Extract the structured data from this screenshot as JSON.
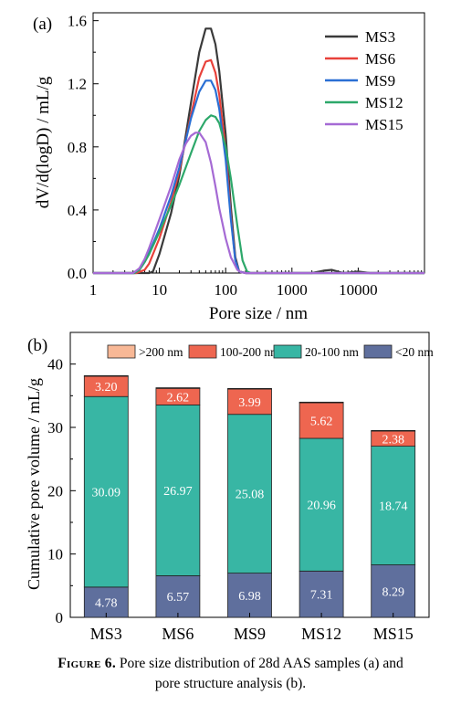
{
  "chart_data": [
    {
      "type": "line",
      "panel_label": "(a)",
      "xlabel": "Pore size / nm",
      "ylabel": "dV/d(logD) / mL/g",
      "x_scale": "log",
      "xlim": [
        1,
        100000
      ],
      "ylim": [
        0,
        1.65
      ],
      "x_ticks": [
        1,
        10,
        100,
        1000,
        10000
      ],
      "x_tick_labels": [
        "1",
        "10",
        "100",
        "1000",
        "10000"
      ],
      "y_ticks": [
        0,
        0.4,
        0.8,
        1.2,
        1.6
      ],
      "y_tick_labels": [
        "0.0",
        "0.4",
        "0.8",
        "1.2",
        "1.6"
      ],
      "legend_position": "top-right",
      "series": [
        {
          "name": "MS3",
          "color": "#3a3a3a",
          "x": [
            1,
            5,
            7,
            8,
            10,
            15,
            20,
            30,
            40,
            50,
            60,
            70,
            80,
            100,
            120,
            140,
            160,
            200,
            2000,
            3000,
            4000,
            6000,
            8000,
            10000,
            15000,
            100000
          ],
          "y": [
            0,
            0,
            0,
            0.01,
            0.12,
            0.38,
            0.62,
            1.08,
            1.4,
            1.55,
            1.55,
            1.45,
            1.28,
            0.88,
            0.42,
            0.1,
            0.01,
            0,
            0,
            0.015,
            0.02,
            0,
            0.005,
            0.01,
            0,
            0
          ]
        },
        {
          "name": "MS6",
          "color": "#e8413a",
          "x": [
            1,
            4.5,
            6,
            7,
            10,
            15,
            20,
            30,
            40,
            50,
            60,
            70,
            80,
            100,
            120,
            140,
            160,
            200,
            100000
          ],
          "y": [
            0,
            0,
            0.02,
            0.06,
            0.22,
            0.45,
            0.65,
            1.0,
            1.24,
            1.34,
            1.35,
            1.27,
            1.13,
            0.78,
            0.36,
            0.08,
            0.01,
            0,
            0
          ]
        },
        {
          "name": "MS9",
          "color": "#2a6fd4",
          "x": [
            1,
            4.2,
            5,
            6,
            7,
            10,
            15,
            20,
            30,
            40,
            50,
            60,
            70,
            80,
            100,
            120,
            140,
            160,
            200,
            100000
          ],
          "y": [
            0,
            0,
            0.02,
            0.07,
            0.13,
            0.28,
            0.49,
            0.67,
            0.98,
            1.15,
            1.22,
            1.22,
            1.16,
            1.04,
            0.72,
            0.34,
            0.08,
            0.01,
            0,
            0
          ]
        },
        {
          "name": "MS12",
          "color": "#2da86a",
          "x": [
            1,
            4.2,
            5,
            6,
            7,
            10,
            15,
            20,
            30,
            40,
            50,
            60,
            70,
            80,
            100,
            120,
            150,
            180,
            210,
            240,
            100000
          ],
          "y": [
            0,
            0,
            0.02,
            0.07,
            0.12,
            0.26,
            0.43,
            0.56,
            0.76,
            0.9,
            0.97,
            1.0,
            0.99,
            0.95,
            0.8,
            0.6,
            0.3,
            0.08,
            0.01,
            0,
            0
          ]
        },
        {
          "name": "MS15",
          "color": "#a56ad4",
          "x": [
            1,
            4.0,
            5,
            6,
            7,
            10,
            15,
            20,
            25,
            30,
            35,
            40,
            50,
            60,
            70,
            80,
            100,
            120,
            150,
            170,
            200,
            100000
          ],
          "y": [
            0,
            0,
            0.03,
            0.09,
            0.16,
            0.34,
            0.55,
            0.72,
            0.82,
            0.87,
            0.89,
            0.89,
            0.83,
            0.7,
            0.55,
            0.41,
            0.22,
            0.1,
            0.02,
            0.005,
            0,
            0
          ]
        }
      ]
    },
    {
      "type": "bar",
      "stacked": true,
      "panel_label": "(b)",
      "xlabel": "",
      "ylabel": "Cumulative pore volume / mL/g",
      "ylim": [
        0,
        45
      ],
      "y_ticks": [
        0,
        10,
        20,
        30,
        40
      ],
      "y_tick_labels": [
        "0",
        "10",
        "20",
        "30",
        "40"
      ],
      "legend_position": "top",
      "categories": [
        "MS3",
        "MS6",
        "MS9",
        "MS12",
        "MS15"
      ],
      "series": [
        {
          "name": "<20 nm",
          "color": "#5f6f9d",
          "values": [
            4.78,
            6.57,
            6.98,
            7.31,
            8.29
          ],
          "labels": [
            "4.78",
            "6.57",
            "6.98",
            "7.31",
            "8.29"
          ]
        },
        {
          "name": "20-100 nm",
          "color": "#38b6a4",
          "values": [
            30.09,
            26.97,
            25.08,
            20.96,
            18.74
          ],
          "labels": [
            "30.09",
            "26.97",
            "25.08",
            "20.96",
            "18.74"
          ]
        },
        {
          "name": "100-200 nm",
          "color": "#ee6650",
          "values": [
            3.2,
            2.62,
            3.99,
            5.62,
            2.38
          ],
          "labels": [
            "3.20",
            "2.62",
            "3.99",
            "5.62",
            "2.38"
          ]
        },
        {
          "name": ">200 nm",
          "color": "#f8b896",
          "values": [
            0.1,
            0.1,
            0.1,
            0.1,
            0.1
          ],
          "labels": [
            "",
            "",
            "",
            "",
            ""
          ]
        }
      ],
      "legend_order": [
        ">200 nm",
        "100-200 nm",
        "20-100 nm",
        "<20 nm"
      ]
    }
  ],
  "caption": {
    "label": "Figure 6.",
    "line1": "Pore size distribution of 28d AAS samples (a) and",
    "line2": "pore structure analysis (b)."
  }
}
